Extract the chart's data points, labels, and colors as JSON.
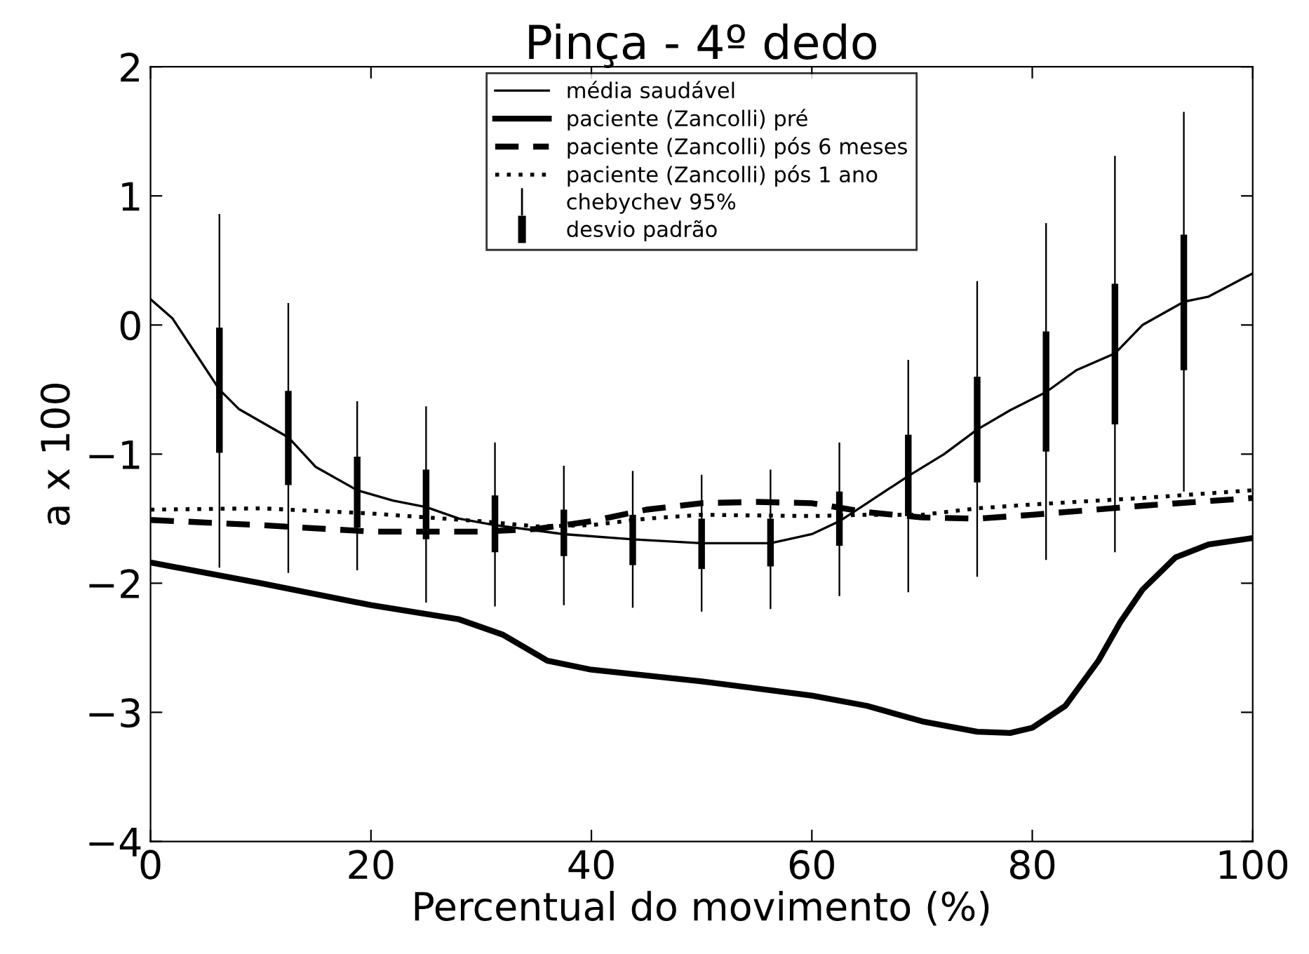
{
  "chart_data": {
    "type": "line",
    "title": "Pinça - 4º dedo",
    "xlabel": "Percentual do movimento (%)",
    "ylabel": "a x 100",
    "xlim": [
      0,
      100
    ],
    "xticks": [
      0,
      20,
      40,
      60,
      80,
      100
    ],
    "ylim": [
      -4,
      2
    ],
    "yticks": [
      -4,
      -3,
      -2,
      -1,
      0,
      1,
      2
    ],
    "grid": false,
    "legend": "top",
    "marker": "none",
    "series": [
      {
        "name": "média saudável",
        "color": "#000000",
        "line_style": "solid",
        "x": [
          0,
          2,
          6.25,
          8,
          12.5,
          15,
          18.75,
          22,
          25,
          28,
          31.25,
          37.5,
          43.75,
          50,
          56.25,
          60,
          62.5,
          65,
          68.75,
          72,
          75,
          78,
          81.25,
          84,
          87.5,
          90,
          93.75,
          96,
          100
        ],
        "values": [
          0.2,
          0.05,
          -0.5,
          -0.65,
          -0.87,
          -1.1,
          -1.28,
          -1.36,
          -1.41,
          -1.5,
          -1.55,
          -1.62,
          -1.66,
          -1.69,
          -1.69,
          -1.62,
          -1.52,
          -1.38,
          -1.17,
          -1.0,
          -0.81,
          -0.66,
          -0.52,
          -0.35,
          -0.22,
          0.0,
          0.18,
          0.22,
          0.4
        ]
      },
      {
        "name": "paciente (Zancolli) pré",
        "color": "#000000",
        "line_style": "solid",
        "x": [
          0,
          10,
          20,
          28,
          32,
          36,
          40,
          50,
          60,
          65,
          70,
          75,
          78,
          80,
          83,
          86,
          88,
          90,
          93,
          96,
          100
        ],
        "values": [
          -1.84,
          -2.0,
          -2.17,
          -2.28,
          -2.4,
          -2.6,
          -2.67,
          -2.76,
          -2.87,
          -2.95,
          -3.07,
          -3.15,
          -3.16,
          -3.12,
          -2.95,
          -2.6,
          -2.3,
          -2.05,
          -1.8,
          -1.7,
          -1.65
        ]
      },
      {
        "name": "paciente (Zancolli) pós 6 meses",
        "color": "#000000",
        "line_style": "dashed",
        "x": [
          0,
          10,
          20,
          30,
          35,
          40,
          45,
          50,
          55,
          60,
          65,
          70,
          75,
          80,
          90,
          100
        ],
        "values": [
          -1.51,
          -1.55,
          -1.6,
          -1.6,
          -1.58,
          -1.52,
          -1.43,
          -1.38,
          -1.37,
          -1.38,
          -1.45,
          -1.49,
          -1.5,
          -1.47,
          -1.4,
          -1.34
        ]
      },
      {
        "name": "paciente (Zancolli) pós 1 ano",
        "color": "#000000",
        "line_style": "dotted",
        "x": [
          0,
          10,
          20,
          30,
          35,
          40,
          45,
          50,
          60,
          65,
          70,
          75,
          80,
          90,
          100
        ],
        "values": [
          -1.43,
          -1.42,
          -1.46,
          -1.52,
          -1.56,
          -1.55,
          -1.5,
          -1.47,
          -1.48,
          -1.47,
          -1.47,
          -1.42,
          -1.39,
          -1.34,
          -1.28
        ]
      },
      {
        "name": "chebychev 95%",
        "type": "bar",
        "color": "#000000",
        "x": [
          6.25,
          12.5,
          18.75,
          25,
          31.25,
          37.5,
          43.75,
          50,
          56.25,
          62.5,
          68.75,
          75,
          81.25,
          87.5,
          93.75
        ],
        "base": [
          -1.88,
          -1.92,
          -1.9,
          -2.15,
          -2.18,
          -2.17,
          -2.19,
          -2.22,
          -2.2,
          -2.1,
          -2.07,
          -1.95,
          -1.82,
          -1.76,
          -1.29
        ],
        "values": [
          2.74,
          2.09,
          1.31,
          1.52,
          1.27,
          1.08,
          1.06,
          1.06,
          1.08,
          1.19,
          1.8,
          2.29,
          2.61,
          3.07,
          2.94
        ]
      },
      {
        "name": "desvio padrão",
        "type": "bar",
        "color": "#000000",
        "x": [
          6.25,
          12.5,
          18.75,
          25,
          31.25,
          37.5,
          43.75,
          50,
          56.25,
          62.5,
          68.75,
          75,
          81.25,
          87.5,
          93.75
        ],
        "base": [
          -0.99,
          -1.24,
          -1.57,
          -1.66,
          -1.76,
          -1.79,
          -1.86,
          -1.89,
          -1.87,
          -1.71,
          -1.48,
          -1.22,
          -0.98,
          -0.77,
          -0.35
        ],
        "values": [
          0.97,
          0.73,
          0.55,
          0.54,
          0.44,
          0.36,
          0.39,
          0.39,
          0.37,
          0.42,
          0.63,
          0.82,
          0.93,
          1.09,
          1.05
        ]
      }
    ]
  }
}
